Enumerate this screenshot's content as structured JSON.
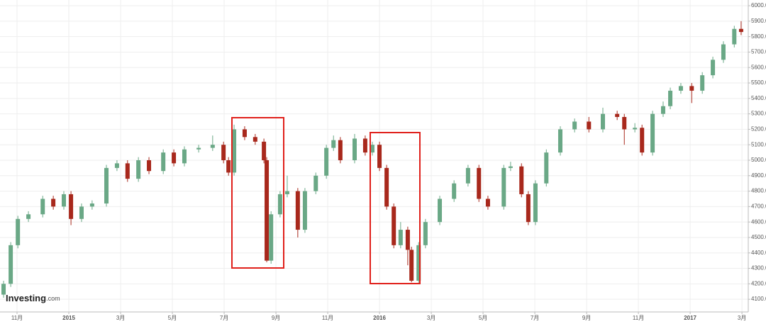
{
  "chart_data": {
    "type": "candlestick",
    "brand": "Investing",
    "brand_suffix": ".com",
    "up_color": "#6aa886",
    "down_color": "#a8281c",
    "grid": true,
    "xlim": [
      2014.7785,
      2017.187
    ],
    "ylim": [
      4018,
      6037
    ],
    "xticks": [
      {
        "value": 2014.8333,
        "label": "11月"
      },
      2015,
      {
        "value": 2015.1667,
        "label": "3月"
      },
      {
        "value": 2015.3333,
        "label": "5月"
      },
      {
        "value": 2015.5,
        "label": "7月"
      },
      {
        "value": 2015.6667,
        "label": "9月"
      },
      {
        "value": 2015.8333,
        "label": "11月"
      },
      2016,
      {
        "value": 2016.1667,
        "label": "3月"
      },
      {
        "value": 2016.3333,
        "label": "5月"
      },
      {
        "value": 2016.5,
        "label": "7月"
      },
      {
        "value": 2016.6667,
        "label": "9月"
      },
      {
        "value": 2016.8333,
        "label": "11月"
      },
      2017,
      {
        "value": 2017.1667,
        "label": "3月"
      }
    ],
    "yticks": [
      {
        "value": 4100,
        "label": "4100.0"
      },
      {
        "value": 4200,
        "label": "4200.0"
      },
      {
        "value": 4300,
        "label": "4300.0"
      },
      {
        "value": 4400,
        "label": "4400.0"
      },
      {
        "value": 4500,
        "label": "4500.0"
      },
      {
        "value": 4600,
        "label": "4600.0"
      },
      {
        "value": 4700,
        "label": "4700.0"
      },
      {
        "value": 4800,
        "label": "4800.0"
      },
      {
        "value": 4900,
        "label": "4900.0"
      },
      {
        "value": 5000,
        "label": "5000.0"
      },
      {
        "value": 5100,
        "label": "5100.0"
      },
      {
        "value": 5200,
        "label": "5200.0"
      },
      {
        "value": 5300,
        "label": "5300.0"
      },
      {
        "value": 5400,
        "label": "5400.0"
      },
      {
        "value": 5500,
        "label": "5500.0"
      },
      {
        "value": 5600,
        "label": "5600.0"
      },
      {
        "value": 5700,
        "label": "5700.0"
      },
      {
        "value": 5800,
        "label": "5800.0"
      },
      {
        "value": 5900,
        "label": "5900.0"
      },
      {
        "value": 6000,
        "label": "6000.0"
      }
    ],
    "x": [
      2014.79,
      2014.813,
      2014.836,
      2014.87,
      2014.916,
      2014.95,
      2014.984,
      2015.007,
      2015.041,
      2015.075,
      2015.121,
      2015.155,
      2015.189,
      2015.224,
      2015.258,
      2015.304,
      2015.338,
      2015.372,
      2015.418,
      2015.463,
      2015.498,
      2015.514,
      2015.532,
      2015.566,
      2015.6,
      2015.628,
      2015.637,
      2015.651,
      2015.68,
      2015.703,
      2015.737,
      2015.76,
      2015.795,
      2015.829,
      2015.852,
      2015.874,
      2015.92,
      2015.954,
      2015.977,
      2016.0,
      2016.023,
      2016.046,
      2016.068,
      2016.091,
      2016.103,
      2016.126,
      2016.148,
      2016.194,
      2016.24,
      2016.285,
      2016.32,
      2016.349,
      2016.4,
      2016.422,
      2016.457,
      2016.479,
      2016.502,
      2016.537,
      2016.582,
      2016.628,
      2016.674,
      2016.719,
      2016.765,
      2016.788,
      2016.822,
      2016.845,
      2016.879,
      2016.913,
      2016.936,
      2016.97,
      2017.005,
      2017.039,
      2017.073,
      2017.107,
      2017.142,
      2017.164
    ],
    "open": [
      4130,
      4200,
      4450,
      4620,
      4650,
      4750,
      4700,
      4780,
      4620,
      4700,
      4720,
      4950,
      4980,
      4880,
      5000,
      4930,
      5050,
      4980,
      5070,
      5080,
      5100,
      5000,
      4920,
      5200,
      5150,
      5120,
      5000,
      4350,
      4650,
      4780,
      4800,
      4550,
      4800,
      4900,
      5080,
      5130,
      5000,
      5140,
      5050,
      5100,
      4950,
      4700,
      4450,
      4550,
      4420,
      4220,
      4450,
      4600,
      4750,
      4850,
      4950,
      4750,
      4700,
      4950,
      4960,
      4780,
      4600,
      4850,
      5050,
      5200,
      5250,
      5200,
      5300,
      5280,
      5200,
      5210,
      5050,
      5300,
      5350,
      5450,
      5480,
      5450,
      5550,
      5650,
      5750,
      5850
    ],
    "high": [
      4220,
      4470,
      4640,
      4670,
      4770,
      4770,
      4800,
      4800,
      4720,
      4740,
      4970,
      5000,
      5000,
      5020,
      5020,
      5070,
      5070,
      5090,
      5100,
      5160,
      5120,
      5020,
      5230,
      5220,
      5170,
      5140,
      5020,
      4670,
      4800,
      4900,
      4820,
      4820,
      4920,
      5100,
      5160,
      5150,
      5170,
      5160,
      5120,
      5120,
      4970,
      4720,
      4600,
      4570,
      4440,
      4470,
      4620,
      4770,
      4870,
      4970,
      4970,
      4770,
      4970,
      4990,
      4980,
      4800,
      4870,
      5070,
      5220,
      5270,
      5280,
      5340,
      5320,
      5300,
      5240,
      5230,
      5320,
      5380,
      5470,
      5500,
      5500,
      5570,
      5670,
      5770,
      5870,
      5900
    ],
    "low": [
      4110,
      4180,
      4430,
      4600,
      4630,
      4680,
      4680,
      4580,
      4600,
      4680,
      4700,
      4930,
      4860,
      4860,
      4910,
      4910,
      4960,
      4960,
      5050,
      5060,
      4980,
      4900,
      4900,
      5130,
      5100,
      4980,
      4340,
      4330,
      4630,
      4760,
      4500,
      4530,
      4780,
      4880,
      5060,
      4980,
      4980,
      5030,
      5030,
      4930,
      4680,
      4430,
      4430,
      4320,
      4210,
      4200,
      4430,
      4580,
      4730,
      4830,
      4730,
      4680,
      4680,
      4930,
      4760,
      4580,
      4580,
      4830,
      5030,
      5180,
      5180,
      5180,
      5260,
      5100,
      5180,
      5030,
      5030,
      5280,
      5330,
      5430,
      5370,
      5430,
      5530,
      5630,
      5730,
      5810
    ],
    "close": [
      4200,
      4450,
      4620,
      4650,
      4750,
      4700,
      4780,
      4620,
      4700,
      4720,
      4950,
      4980,
      4880,
      5000,
      4930,
      5050,
      4980,
      5070,
      5080,
      5100,
      5000,
      4920,
      5200,
      5150,
      5120,
      5000,
      4350,
      4650,
      4780,
      4800,
      4550,
      4800,
      4900,
      5080,
      5130,
      5000,
      5140,
      5050,
      5100,
      4950,
      4700,
      4450,
      4550,
      4420,
      4220,
      4450,
      4600,
      4750,
      4850,
      4950,
      4750,
      4700,
      4950,
      4960,
      4780,
      4600,
      4850,
      5050,
      5200,
      5250,
      5200,
      5300,
      5280,
      5200,
      5210,
      5050,
      5300,
      5350,
      5450,
      5480,
      5450,
      5550,
      5650,
      5750,
      5850,
      5830
    ]
  }
}
